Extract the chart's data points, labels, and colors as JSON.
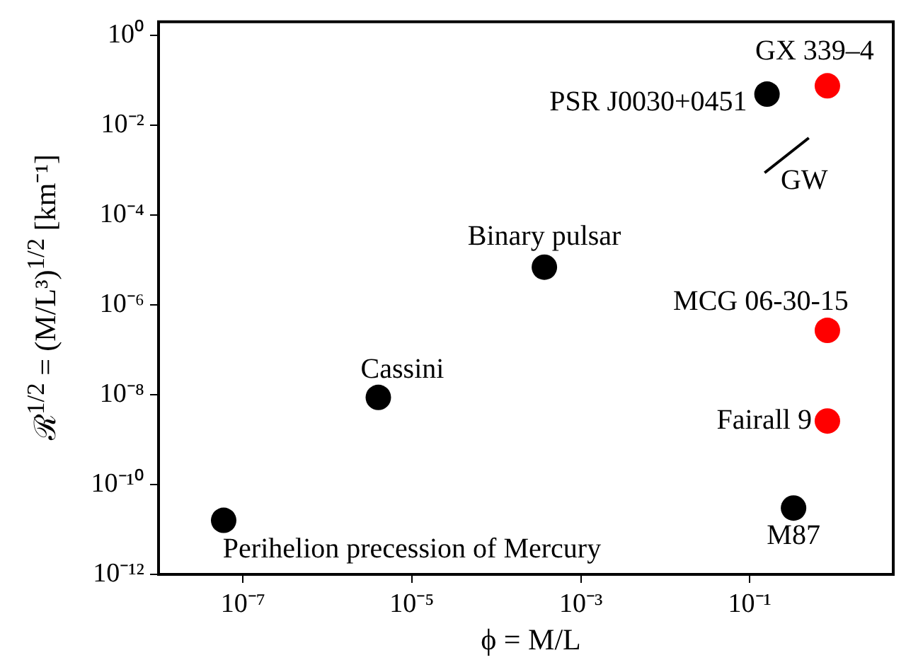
{
  "chart_data": {
    "type": "scatter",
    "xlabel": "ϕ = M/L",
    "ylabel": "ℛ$^{1/2}$ = (M/L³)$^{1/2}$ [km⁻¹]",
    "log": "xy",
    "marker": "circle",
    "xlim": [
      1e-08,
      5
    ],
    "ylim": [
      1e-12,
      2
    ],
    "xticks": [
      {
        "value": 1e-07,
        "label": "10⁻⁷"
      },
      {
        "value": 1e-05,
        "label": "10⁻⁵"
      },
      {
        "value": 0.001,
        "label": "10⁻³"
      },
      {
        "value": 0.1,
        "label": "10⁻¹"
      }
    ],
    "yticks": [
      {
        "value": 1e-12,
        "label": "10⁻¹²"
      },
      {
        "value": 1e-10,
        "label": "10⁻¹⁰"
      },
      {
        "value": 1e-08,
        "label": "10⁻⁸"
      },
      {
        "value": 1e-06,
        "label": "10⁻⁶"
      },
      {
        "value": 0.0001,
        "label": "10⁻⁴"
      },
      {
        "value": 0.01,
        "label": "10⁻²"
      },
      {
        "value": 1,
        "label": "10⁰"
      }
    ],
    "series": [
      {
        "color": "#000000",
        "x": [
          5.9e-08,
          4e-06,
          0.00037,
          0.16,
          0.33
        ],
        "values": [
          1.6e-11,
          8.7e-09,
          6.9e-06,
          0.049,
          3e-11
        ]
      },
      {
        "color": "#ff0000",
        "x": [
          0.83,
          0.83,
          0.83
        ],
        "values": [
          0.075,
          2.7e-07,
          2.6e-09
        ]
      },
      {
        "type": "line",
        "marker": "none",
        "color": "#000000",
        "x": [
          0.15,
          0.5
        ],
        "values": [
          0.00087,
          0.0052
        ]
      }
    ],
    "annotations": [
      {
        "text": "GX 339–4",
        "x": 0.83,
        "y": 0.075
      },
      {
        "text": "PSR J0030+0451",
        "x": 0.16,
        "y": 0.049
      },
      {
        "text": "GW",
        "x": 0.15,
        "y": 0.00087
      },
      {
        "text": "Binary pulsar",
        "x": 0.00037,
        "y": 6.9e-06
      },
      {
        "text": "MCG 06-30-15",
        "x": 0.83,
        "y": 2.7e-07
      },
      {
        "text": "Cassini",
        "x": 4e-06,
        "y": 8.7e-09
      },
      {
        "text": "Fairall 9",
        "x": 0.83,
        "y": 2.6e-09
      },
      {
        "text": "M87",
        "x": 0.33,
        "y": 3e-11
      },
      {
        "text": "Perihelion precession of Mercury",
        "x": 5.9e-08,
        "y": 1.6e-11
      }
    ]
  }
}
